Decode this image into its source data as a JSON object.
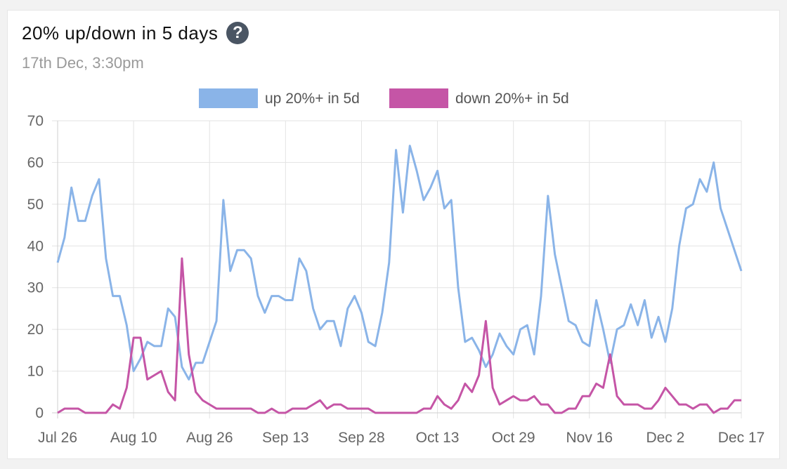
{
  "header": {
    "title": "20% up/down in 5 days",
    "subtitle": "17th Dec, 3:30pm",
    "help_icon": "question-circle-icon"
  },
  "chart_data": {
    "type": "line",
    "title": "20% up/down in 5 days",
    "subtitle": "17th Dec, 3:30pm",
    "xlabel": "",
    "ylabel": "",
    "ylim": [
      0,
      70
    ],
    "yticks": [
      0,
      10,
      20,
      30,
      40,
      50,
      60,
      70
    ],
    "xticks": [
      "Jul 26",
      "Aug 10",
      "Aug 26",
      "Sep 13",
      "Sep 28",
      "Oct 13",
      "Oct 29",
      "Nov 16",
      "Dec 2",
      "Dec 17"
    ],
    "grid": true,
    "legend_position": "top-center",
    "series": [
      {
        "name": "up 20%+ in 5d",
        "color": "#8ab4e8",
        "values": [
          36,
          42,
          54,
          46,
          46,
          52,
          56,
          37,
          28,
          28,
          21,
          10,
          13,
          17,
          16,
          16,
          25,
          23,
          11,
          8,
          12,
          12,
          17,
          22,
          51,
          34,
          39,
          39,
          37,
          28,
          24,
          28,
          28,
          27,
          27,
          37,
          34,
          25,
          20,
          22,
          22,
          16,
          25,
          28,
          24,
          17,
          16,
          24,
          36,
          63,
          48,
          64,
          58,
          51,
          54,
          58,
          49,
          51,
          30,
          17,
          18,
          15,
          11,
          14,
          19,
          16,
          14,
          20,
          21,
          14,
          28,
          52,
          38,
          30,
          22,
          21,
          17,
          16,
          27,
          20,
          12,
          20,
          21,
          26,
          21,
          27,
          18,
          23,
          17,
          25,
          40,
          49,
          50,
          56,
          53,
          60,
          49,
          44,
          39,
          34
        ]
      },
      {
        "name": "down 20%+ in 5d",
        "color": "#c555a6",
        "values": [
          0,
          1,
          1,
          1,
          0,
          0,
          0,
          0,
          2,
          1,
          6,
          18,
          18,
          8,
          9,
          10,
          5,
          3,
          37,
          14,
          5,
          3,
          2,
          1,
          1,
          1,
          1,
          1,
          1,
          0,
          0,
          1,
          0,
          0,
          1,
          1,
          1,
          2,
          3,
          1,
          2,
          2,
          1,
          1,
          1,
          1,
          0,
          0,
          0,
          0,
          0,
          0,
          0,
          1,
          1,
          4,
          2,
          1,
          3,
          7,
          5,
          9,
          22,
          6,
          2,
          3,
          4,
          3,
          3,
          4,
          2,
          2,
          0,
          0,
          1,
          1,
          4,
          4,
          7,
          6,
          14,
          4,
          2,
          2,
          2,
          1,
          1,
          3,
          6,
          4,
          2,
          2,
          1,
          2,
          2,
          0,
          1,
          1,
          3,
          3
        ]
      }
    ]
  }
}
